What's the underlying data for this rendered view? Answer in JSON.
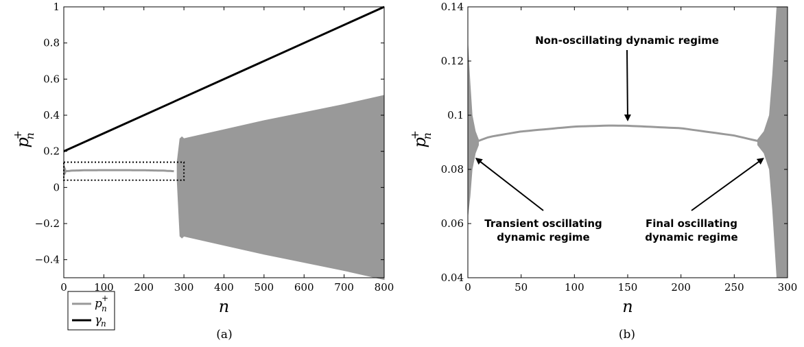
{
  "chart_data": [
    {
      "panel": "(a)",
      "type": "line",
      "xlabel": "n",
      "ylabel": "p_n^+",
      "xlim": [
        0,
        800
      ],
      "ylim": [
        -0.5,
        1
      ],
      "xticks": [
        "0",
        "100",
        "200",
        "300",
        "400",
        "500",
        "600",
        "700",
        "800"
      ],
      "yticks": [
        "−0.4",
        "−0.2",
        "0",
        "0.2",
        "0.4",
        "0.6",
        "0.8",
        "1"
      ],
      "legend": {
        "placement": "bottom-left",
        "entries": [
          "p_n^+",
          "γ_n"
        ]
      },
      "grid": false,
      "series": [
        {
          "name": "p_n^+",
          "color": "#999999",
          "stable_curve": {
            "x": [
              5,
              20,
              50,
              100,
              150,
              200,
              250,
              275
            ],
            "y": [
              0.09,
              0.093,
              0.095,
              0.096,
              0.096,
              0.095,
              0.093,
              0.09
            ]
          },
          "initial_transient": {
            "x": [
              0,
              5
            ],
            "upper": [
              0.126,
              0.1
            ],
            "lower": [
              0.063,
              0.08
            ]
          },
          "oscillating_envelope": {
            "x": [
              283,
              290,
              295,
              300,
              310,
              400,
              500,
              600,
              700,
              800
            ],
            "upper": [
              0.14,
              0.27,
              0.28,
              0.27,
              0.275,
              0.32,
              0.37,
              0.415,
              0.46,
              0.51
            ],
            "lower": [
              0.04,
              -0.27,
              -0.28,
              -0.27,
              -0.275,
              -0.32,
              -0.37,
              -0.415,
              -0.46,
              -0.51
            ]
          }
        },
        {
          "name": "γ_n",
          "color": "#000000",
          "x": [
            0,
            800
          ],
          "y": [
            0.2,
            1.0
          ]
        }
      ],
      "zoom_box": {
        "x": [
          0,
          300
        ],
        "y": [
          0.04,
          0.14
        ]
      }
    },
    {
      "panel": "(b)",
      "type": "line",
      "xlabel": "n",
      "ylabel": "p_n^+",
      "xlim": [
        0,
        300
      ],
      "ylim": [
        0.04,
        0.14
      ],
      "xticks": [
        "0",
        "50",
        "100",
        "150",
        "200",
        "250",
        "300"
      ],
      "yticks": [
        "0.04",
        "0.06",
        "0.08",
        "0.1",
        "0.12",
        "0.14"
      ],
      "grid": false,
      "series": [
        {
          "name": "p_n^+",
          "color": "#999999",
          "stable_curve": {
            "x": [
              10,
              20,
              50,
              100,
              135,
              150,
              200,
              250,
              272
            ],
            "y": [
              0.0905,
              0.092,
              0.094,
              0.0958,
              0.0962,
              0.0961,
              0.0952,
              0.0925,
              0.0905
            ]
          },
          "initial_transient": {
            "x": [
              0,
              2,
              4,
              7,
              10
            ],
            "upper": [
              0.126,
              0.112,
              0.1,
              0.094,
              0.091
            ],
            "lower": [
              0.063,
              0.07,
              0.08,
              0.086,
              0.089
            ]
          },
          "final_transient": {
            "x": [
              272,
              278,
              283,
              286,
              290,
              300
            ],
            "upper": [
              0.091,
              0.094,
              0.1,
              0.115,
              0.14,
              0.14
            ],
            "lower": [
              0.089,
              0.086,
              0.08,
              0.065,
              0.04,
              0.04
            ]
          }
        }
      ],
      "annotations": [
        {
          "text": "Non-oscillating dynamic regime",
          "arrow_to": [
            150,
            0.0962
          ]
        },
        {
          "text": "Transient oscillating dynamic regime",
          "lines": [
            "Transient oscillating",
            "dynamic regime"
          ],
          "arrow_to": [
            8,
            0.0855
          ]
        },
        {
          "text": "Final oscillating dynamic regime",
          "lines": [
            "Final oscillating",
            "dynamic regime"
          ],
          "arrow_to": [
            277,
            0.0855
          ]
        }
      ]
    }
  ]
}
